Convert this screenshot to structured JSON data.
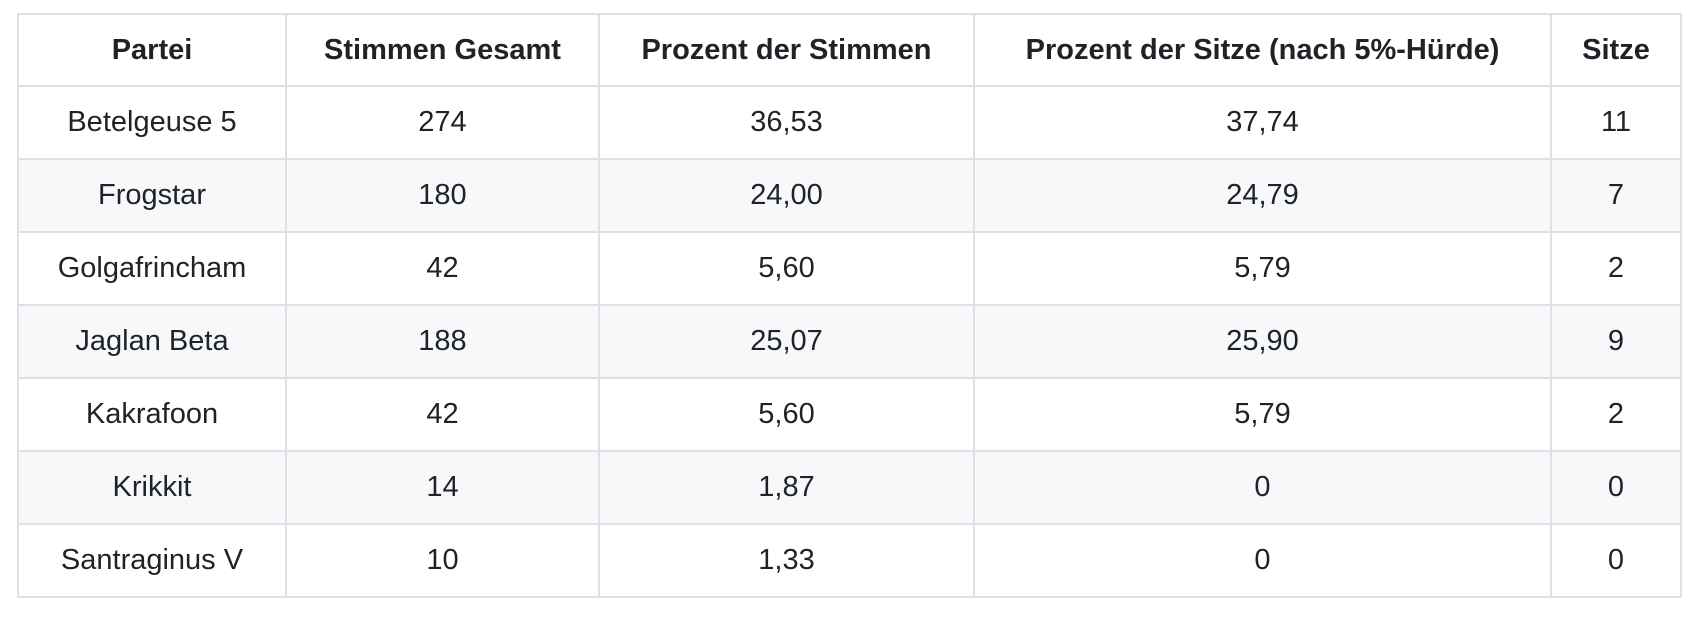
{
  "chart_data": {
    "type": "table",
    "columns": [
      "Partei",
      "Stimmen Gesamt",
      "Prozent der Stimmen",
      "Prozent der Sitze (nach 5%-Hürde)",
      "Sitze"
    ],
    "rows": [
      [
        "Betelgeuse 5",
        "274",
        "36,53",
        "37,74",
        "11"
      ],
      [
        "Frogstar",
        "180",
        "24,00",
        "24,79",
        "7"
      ],
      [
        "Golgafrincham",
        "42",
        "5,60",
        "5,79",
        "2"
      ],
      [
        "Jaglan Beta",
        "188",
        "25,07",
        "25,90",
        "9"
      ],
      [
        "Kakrafoon",
        "42",
        "5,60",
        "5,79",
        "2"
      ],
      [
        "Krikkit",
        "14",
        "1,87",
        "0",
        "0"
      ],
      [
        "Santraginus V",
        "10",
        "1,33",
        "0",
        "0"
      ]
    ]
  },
  "colors": {
    "background": "#ffffff",
    "text": "#1f2328",
    "border": "#dde1e6",
    "row_stripe": "#f6f8fa"
  }
}
